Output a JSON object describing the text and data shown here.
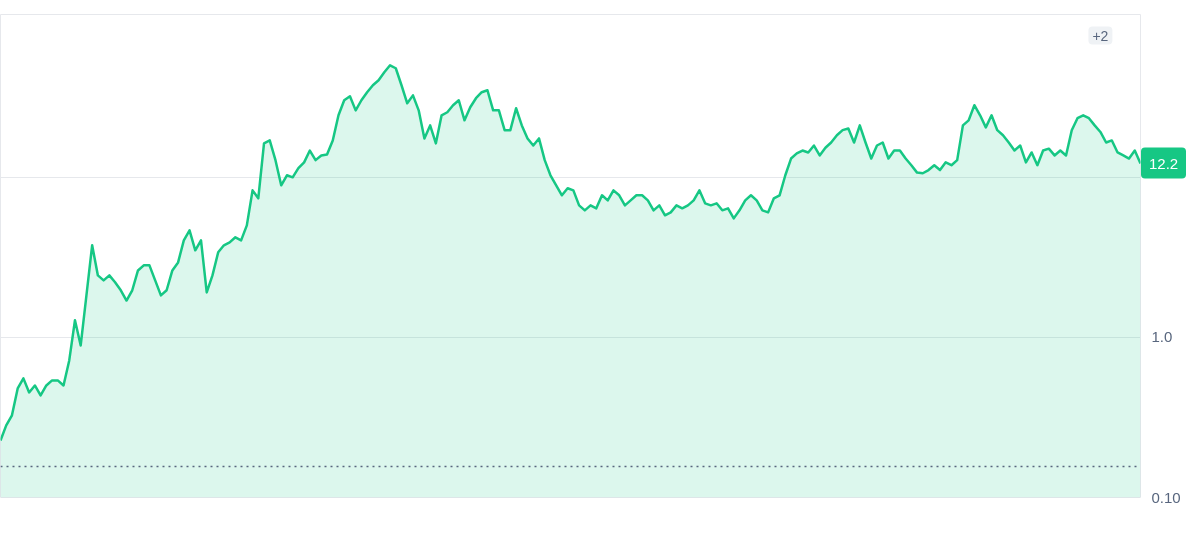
{
  "chart_data": {
    "type": "area",
    "color": "#16c784",
    "values": [
      0.227,
      0.282,
      0.326,
      0.48,
      0.555,
      0.453,
      0.501,
      0.434,
      0.501,
      0.539,
      0.539,
      0.501,
      0.718,
      1.28,
      0.891,
      1.83,
      3.76,
      2.44,
      2.27,
      2.44,
      2.21,
      1.97,
      1.7,
      1.97,
      2.62,
      2.82,
      2.82,
      2.27,
      1.83,
      1.97,
      2.62,
      2.94,
      4.04,
      4.66,
      3.5,
      4.04,
      1.91,
      2.44,
      3.4,
      3.76,
      3.92,
      4.22,
      4.04,
      5.01,
      8.29,
      7.39,
      16.3,
      17.0,
      12.8,
      8.91,
      10.3,
      10.0,
      11.4,
      12.4,
      14.7,
      12.8,
      13.7,
      13.9,
      17.0,
      24.4,
      30.3,
      32.1,
      26.2,
      30.3,
      34.0,
      37.6,
      40.4,
      45.3,
      50.1,
      48.0,
      37.6,
      29.0,
      32.5,
      26.2,
      17.5,
      21.1,
      16.3,
      24.4,
      25.5,
      28.2,
      30.3,
      22.7,
      27.4,
      31.2,
      34.0,
      35.0,
      26.2,
      26.2,
      19.7,
      19.7,
      27.0,
      21.1,
      17.5,
      15.8,
      17.5,
      12.8,
      10.3,
      8.91,
      7.72,
      8.54,
      8.29,
      6.68,
      6.22,
      6.68,
      6.4,
      7.72,
      7.18,
      8.29,
      7.72,
      6.68,
      7.18,
      7.72,
      7.72,
      7.18,
      6.22,
      6.68,
      5.79,
      6.04,
      6.68,
      6.4,
      6.68,
      7.18,
      8.29,
      6.88,
      6.68,
      6.88,
      6.22,
      6.4,
      5.54,
      6.22,
      7.18,
      7.72,
      7.18,
      6.22,
      6.04,
      7.39,
      7.72,
      10.3,
      13.1,
      14.1,
      14.7,
      14.3,
      15.8,
      13.7,
      15.3,
      16.5,
      18.3,
      19.7,
      20.2,
      16.5,
      21.1,
      16.5,
      13.1,
      15.8,
      16.5,
      13.1,
      14.7,
      14.7,
      13.1,
      11.9,
      10.7,
      10.6,
      11.1,
      11.9,
      11.1,
      12.4,
      11.9,
      12.8,
      21.1,
      22.7,
      28.2,
      24.4,
      20.5,
      24.4,
      19.7,
      18.3,
      16.5,
      14.7,
      15.8,
      12.4,
      14.3,
      11.9,
      14.7,
      15.1,
      13.7,
      14.7,
      13.7,
      19.7,
      23.4,
      24.4,
      23.4,
      21.1,
      19.2,
      16.5,
      17.0,
      14.3,
      13.7,
      13.1,
      14.7,
      12.2
    ],
    "ylim": [
      0.1,
      104
    ],
    "yticks": [
      {
        "value": 0.1,
        "label": "0.10"
      },
      {
        "value": 1,
        "label": "1.0"
      },
      {
        "value": 10,
        "label": null
      }
    ],
    "log": true,
    "grid": "y",
    "ref_lines": [
      {
        "axis": "y",
        "value": 0.156,
        "color": "#58667e",
        "line_style": "dotted"
      }
    ],
    "annotations": [
      "+2",
      "12.2"
    ]
  }
}
